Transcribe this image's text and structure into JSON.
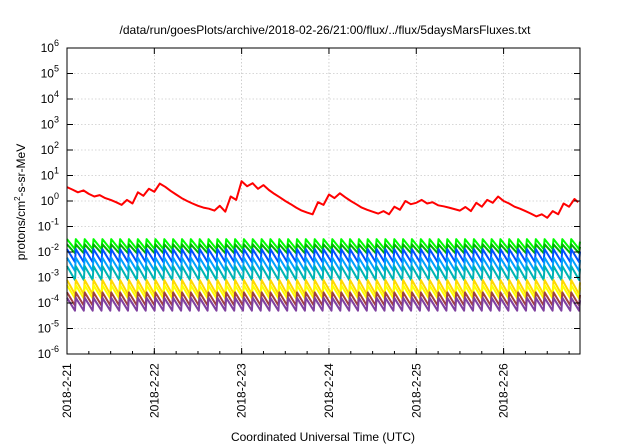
{
  "chart_data": {
    "type": "line",
    "title": "/data/run/goesPlots/archive/2018-02-26/21:00/flux/../flux/5daysMarsFluxes.txt",
    "xlabel": "Coordinated Universal Time (UTC)",
    "ylabel": {
      "prefix": "protons/cm",
      "sup": "2",
      "suffix": "-s-sr-MeV"
    },
    "yscale": "log",
    "ylim": [
      1e-06,
      1000000.0
    ],
    "yticks": [
      {
        "value": 1e-06,
        "base": "10",
        "exp": "-6"
      },
      {
        "value": 1e-05,
        "base": "10",
        "exp": "-5"
      },
      {
        "value": 0.0001,
        "base": "10",
        "exp": "-4"
      },
      {
        "value": 0.001,
        "base": "10",
        "exp": "-3"
      },
      {
        "value": 0.01,
        "base": "10",
        "exp": "-2"
      },
      {
        "value": 0.1,
        "base": "10",
        "exp": "-1"
      },
      {
        "value": 1,
        "base": "10",
        "exp": "0"
      },
      {
        "value": 10.0,
        "base": "10",
        "exp": "1"
      },
      {
        "value": 100.0,
        "base": "10",
        "exp": "2"
      },
      {
        "value": 1000.0,
        "base": "10",
        "exp": "3"
      },
      {
        "value": 10000.0,
        "base": "10",
        "exp": "4"
      },
      {
        "value": 100000.0,
        "base": "10",
        "exp": "5"
      },
      {
        "value": 1000000.0,
        "base": "10",
        "exp": "6"
      }
    ],
    "xlim": [
      "2018-02-21T00:00",
      "2018-02-26T21:00"
    ],
    "xticks": [
      "2018-2-21",
      "2018-2-22",
      "2018-2-23",
      "2018-2-24",
      "2018-2-25",
      "2018-2-26"
    ],
    "xtick_dates": [
      "2018-02-21",
      "2018-02-22",
      "2018-02-23",
      "2018-02-24",
      "2018-02-25",
      "2018-02-26"
    ],
    "grid": true,
    "series": [
      {
        "color": "#ff0000",
        "x": [
          "2018-02-21T00:00",
          "2018-02-21T01:30",
          "2018-02-21T03:00",
          "2018-02-21T04:30",
          "2018-02-21T06:00",
          "2018-02-21T07:30",
          "2018-02-21T09:00",
          "2018-02-21T10:30",
          "2018-02-21T12:00",
          "2018-02-21T13:30",
          "2018-02-21T15:00",
          "2018-02-21T16:30",
          "2018-02-21T18:00",
          "2018-02-21T19:30",
          "2018-02-21T21:00",
          "2018-02-21T22:30",
          "2018-02-22T00:00",
          "2018-02-22T01:30",
          "2018-02-22T03:00",
          "2018-02-22T04:30",
          "2018-02-22T06:00",
          "2018-02-22T07:30",
          "2018-02-22T09:00",
          "2018-02-22T10:30",
          "2018-02-22T12:00",
          "2018-02-22T13:30",
          "2018-02-22T15:00",
          "2018-02-22T16:30",
          "2018-02-22T18:00",
          "2018-02-22T19:30",
          "2018-02-22T21:00",
          "2018-02-22T22:30",
          "2018-02-23T00:00",
          "2018-02-23T01:30",
          "2018-02-23T03:00",
          "2018-02-23T04:30",
          "2018-02-23T06:00",
          "2018-02-23T07:30",
          "2018-02-23T09:00",
          "2018-02-23T10:30",
          "2018-02-23T12:00",
          "2018-02-23T13:30",
          "2018-02-23T15:00",
          "2018-02-23T16:30",
          "2018-02-23T18:00",
          "2018-02-23T19:30",
          "2018-02-23T21:00",
          "2018-02-23T22:30",
          "2018-02-24T00:00",
          "2018-02-24T01:30",
          "2018-02-24T03:00",
          "2018-02-24T04:30",
          "2018-02-24T06:00",
          "2018-02-24T07:30",
          "2018-02-24T09:00",
          "2018-02-24T10:30",
          "2018-02-24T12:00",
          "2018-02-24T13:30",
          "2018-02-24T15:00",
          "2018-02-24T16:30",
          "2018-02-24T18:00",
          "2018-02-24T19:30",
          "2018-02-24T21:00",
          "2018-02-24T22:30",
          "2018-02-25T00:00",
          "2018-02-25T01:30",
          "2018-02-25T03:00",
          "2018-02-25T04:30",
          "2018-02-25T06:00",
          "2018-02-25T07:30",
          "2018-02-25T09:00",
          "2018-02-25T10:30",
          "2018-02-25T12:00",
          "2018-02-25T13:30",
          "2018-02-25T15:00",
          "2018-02-25T16:30",
          "2018-02-25T18:00",
          "2018-02-25T19:30",
          "2018-02-25T21:00",
          "2018-02-25T22:30",
          "2018-02-26T00:00",
          "2018-02-26T01:30",
          "2018-02-26T03:00",
          "2018-02-26T04:30",
          "2018-02-26T06:00",
          "2018-02-26T07:30",
          "2018-02-26T09:00",
          "2018-02-26T10:30",
          "2018-02-26T12:00",
          "2018-02-26T13:30",
          "2018-02-26T15:00",
          "2018-02-26T16:30",
          "2018-02-26T18:00",
          "2018-02-26T19:30",
          "2018-02-26T20:30"
        ],
        "y": [
          3.5,
          2.8,
          2.2,
          2.6,
          1.9,
          1.5,
          1.7,
          1.3,
          1.1,
          0.9,
          0.7,
          1.1,
          0.8,
          2.2,
          1.6,
          3.0,
          2.3,
          4.8,
          3.6,
          2.5,
          1.8,
          1.3,
          1.0,
          0.8,
          0.65,
          0.55,
          0.5,
          0.42,
          0.65,
          0.38,
          1.5,
          1.1,
          6.0,
          3.8,
          5.0,
          3.0,
          4.2,
          2.7,
          1.9,
          1.4,
          1.0,
          0.75,
          0.55,
          0.42,
          0.35,
          0.3,
          0.9,
          0.7,
          1.8,
          1.3,
          2.0,
          1.4,
          1.0,
          0.75,
          0.55,
          0.45,
          0.38,
          0.32,
          0.4,
          0.3,
          0.6,
          0.45,
          1.0,
          0.75,
          0.85,
          1.1,
          0.8,
          0.9,
          0.68,
          0.62,
          0.55,
          0.48,
          0.42,
          0.58,
          0.4,
          0.85,
          0.6,
          1.1,
          0.85,
          1.5,
          1.0,
          0.8,
          0.6,
          0.5,
          0.4,
          0.32,
          0.25,
          0.3,
          0.22,
          0.4,
          0.3,
          0.8,
          0.6,
          1.2,
          0.9
        ]
      },
      {
        "color": "#00ff00",
        "min": 0.013,
        "max": 0.032
      },
      {
        "color": "#00b400",
        "min": 0.009,
        "max": 0.02
      },
      {
        "color": "#0050ff",
        "min": 0.004,
        "max": 0.013
      },
      {
        "color": "#00a0ff",
        "min": 0.0018,
        "max": 0.006
      },
      {
        "color": "#00b4b4",
        "min": 0.0008,
        "max": 0.0028
      },
      {
        "color": "#ffd800",
        "min": 0.00022,
        "max": 0.0008
      },
      {
        "color": "#ffff00",
        "min": 0.00015,
        "max": 0.0005
      },
      {
        "color": "#a04040",
        "min": 8e-05,
        "max": 0.00026
      },
      {
        "color": "#8040a0",
        "min": 5e-05,
        "max": 0.00016
      }
    ],
    "sawtooth_cycles": 58
  }
}
